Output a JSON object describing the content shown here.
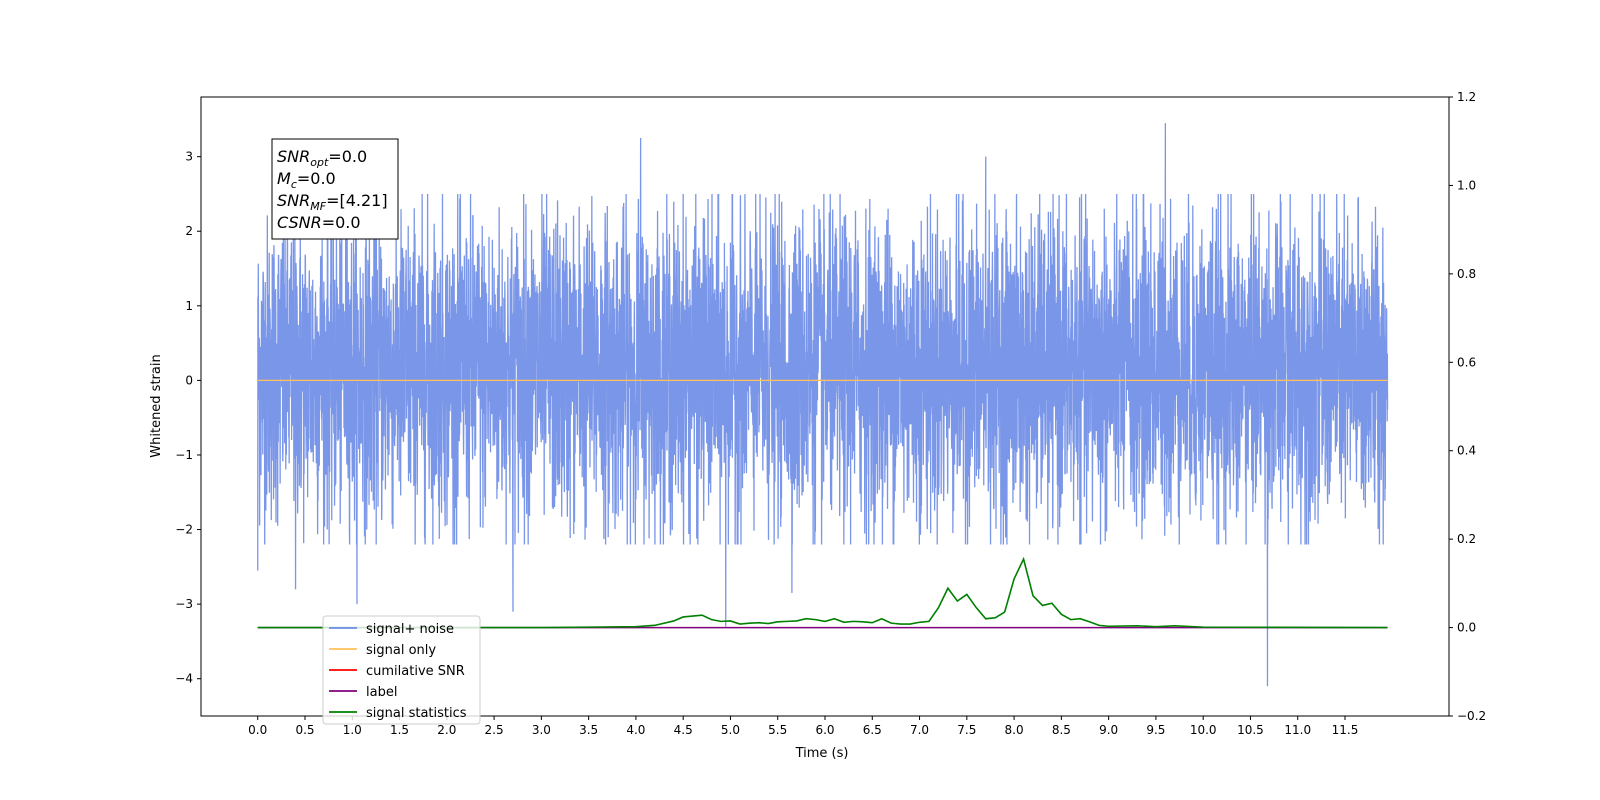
{
  "chart_data": {
    "type": "line",
    "xlabel": "Time (s)",
    "ylabel": "Whitened strain",
    "xlim": [
      -0.6,
      12.6
    ],
    "ylim": [
      -4.5,
      3.8
    ],
    "y2lim": [
      -0.2,
      1.2
    ],
    "x_ticks": [
      "0.0",
      "0.5",
      "1.0",
      "1.5",
      "2.0",
      "2.5",
      "3.0",
      "3.5",
      "4.0",
      "4.5",
      "5.0",
      "5.5",
      "6.0",
      "6.5",
      "7.0",
      "7.5",
      "8.0",
      "8.5",
      "9.0",
      "9.5",
      "10.0",
      "10.5",
      "11.0",
      "11.5"
    ],
    "y_ticks": [
      "3",
      "2",
      "1",
      "0",
      "−1",
      "−2",
      "−3",
      "−4"
    ],
    "y2_ticks": [
      "1.2",
      "1.0",
      "0.8",
      "0.6",
      "0.4",
      "0.2",
      "0.0",
      "−0.2"
    ],
    "noise": {
      "x_start": 0.0,
      "x_end": 11.95,
      "baseline": 0.0,
      "typical_range": [
        -1.7,
        2.0
      ],
      "extremes": [
        {
          "x": 0.0,
          "y": -2.55
        },
        {
          "x": 0.4,
          "y": -2.8
        },
        {
          "x": 1.05,
          "y": -3.0
        },
        {
          "x": 2.7,
          "y": -3.1
        },
        {
          "x": 4.05,
          "y": 3.25
        },
        {
          "x": 4.95,
          "y": -3.3
        },
        {
          "x": 5.65,
          "y": -2.85
        },
        {
          "x": 7.7,
          "y": 3.0
        },
        {
          "x": 9.6,
          "y": 3.45
        },
        {
          "x": 10.68,
          "y": -4.1
        }
      ]
    },
    "series": [
      {
        "name": "signal+ noise",
        "color": "#6b8be6"
      },
      {
        "name": "signal only",
        "color": "#ffbf5a",
        "x": [
          0.0,
          11.95
        ],
        "y": [
          0.0,
          0.0
        ]
      },
      {
        "name": "cumilative SNR",
        "color": "#ff0000"
      },
      {
        "name": "label",
        "color": "#800080",
        "x": [
          0.0,
          11.95
        ],
        "y": [
          0.0,
          0.0
        ]
      },
      {
        "name": "signal statistics",
        "color": "#008000",
        "x": [
          0.0,
          3.0,
          3.5,
          4.0,
          4.2,
          4.4,
          4.5,
          4.6,
          4.7,
          4.8,
          4.9,
          5.0,
          5.1,
          5.2,
          5.3,
          5.4,
          5.5,
          5.6,
          5.7,
          5.8,
          5.9,
          6.0,
          6.1,
          6.2,
          6.3,
          6.4,
          6.5,
          6.6,
          6.7,
          6.8,
          6.9,
          7.0,
          7.1,
          7.2,
          7.3,
          7.4,
          7.5,
          7.6,
          7.7,
          7.8,
          7.9,
          8.0,
          8.1,
          8.2,
          8.3,
          8.4,
          8.5,
          8.6,
          8.7,
          8.8,
          8.9,
          9.0,
          9.3,
          9.5,
          9.7,
          10.0,
          11.95
        ],
        "y": [
          0.0,
          0.0,
          0.001,
          0.002,
          0.005,
          0.015,
          0.024,
          0.026,
          0.028,
          0.018,
          0.014,
          0.015,
          0.008,
          0.01,
          0.011,
          0.009,
          0.013,
          0.014,
          0.015,
          0.02,
          0.018,
          0.014,
          0.02,
          0.012,
          0.014,
          0.013,
          0.011,
          0.02,
          0.01,
          0.008,
          0.008,
          0.012,
          0.014,
          0.045,
          0.089,
          0.06,
          0.075,
          0.045,
          0.02,
          0.022,
          0.035,
          0.11,
          0.155,
          0.072,
          0.05,
          0.055,
          0.03,
          0.018,
          0.02,
          0.013,
          0.005,
          0.003,
          0.004,
          0.002,
          0.004,
          0.001,
          0.0
        ]
      }
    ],
    "annotation": {
      "lines": [
        {
          "main": "SNR",
          "sub": "opt",
          "value": "=0.0"
        },
        {
          "main": "M",
          "sub": "c",
          "value": "=0.0"
        },
        {
          "main": "SNR",
          "sub": "MF",
          "value": "=[4.21]"
        },
        {
          "main": "CSNR",
          "sub": "",
          "value": "=0.0"
        }
      ]
    },
    "legend_position": "lower-left"
  }
}
